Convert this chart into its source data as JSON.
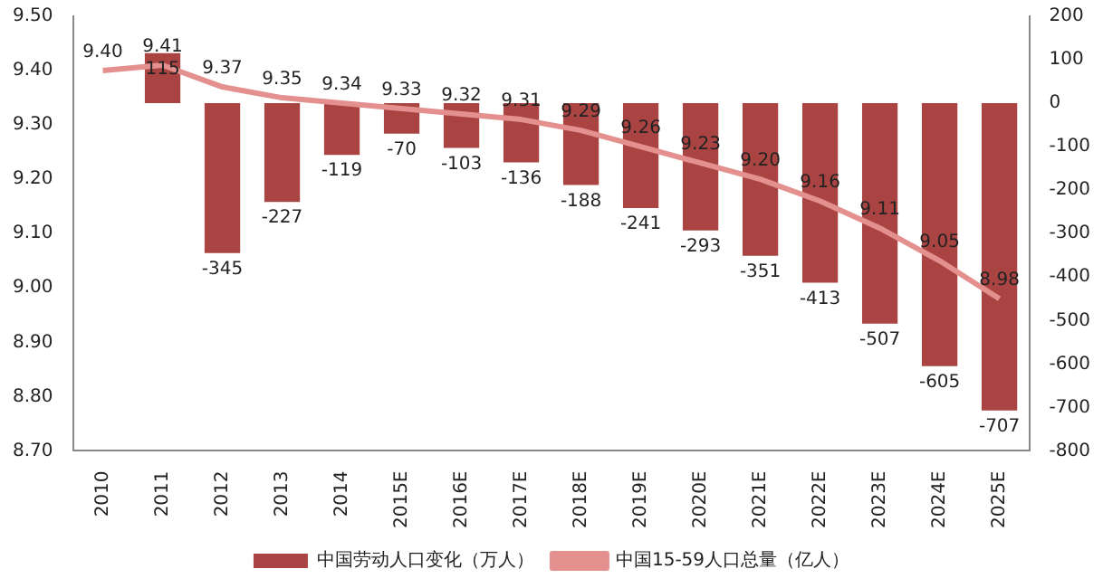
{
  "chart_data": {
    "type": "bar",
    "categories": [
      "2010",
      "2011",
      "2012",
      "2013",
      "2014",
      "2015E",
      "2016E",
      "2017E",
      "2018E",
      "2019E",
      "2020E",
      "2021E",
      "2022E",
      "2023E",
      "2024E",
      "2025E"
    ],
    "series": [
      {
        "name": "中国劳动人口变化（万人）",
        "axis": "y2",
        "color": "#a94443",
        "values": [
          null,
          115,
          -345,
          -227,
          -119,
          -70,
          -103,
          -136,
          -188,
          -241,
          -293,
          -351,
          -413,
          -507,
          -605,
          -707
        ]
      },
      {
        "name": "中国15-59人口总量（亿人）",
        "type": "line",
        "axis": "y",
        "color": "#e3908e",
        "values": [
          9.4,
          9.41,
          9.37,
          9.35,
          9.34,
          9.33,
          9.32,
          9.31,
          9.29,
          9.26,
          9.23,
          9.2,
          9.16,
          9.11,
          9.05,
          8.98
        ],
        "value_labels": [
          "9.40",
          "9.41",
          "9.37",
          "9.35",
          "9.34",
          "9.33",
          "9.32",
          "9.31",
          "9.29",
          "9.26",
          "9.23",
          "9.20",
          "9.16",
          "9.11",
          "9.05",
          "8.98"
        ]
      }
    ],
    "ylim": [
      8.7,
      9.5
    ],
    "yticks": [
      {
        "value": 8.7,
        "label": "8.70"
      },
      {
        "value": 8.8,
        "label": "8.80"
      },
      {
        "value": 8.9,
        "label": "8.90"
      },
      {
        "value": 9.0,
        "label": "9.00"
      },
      {
        "value": 9.1,
        "label": "9.10"
      },
      {
        "value": 9.2,
        "label": "9.20"
      },
      {
        "value": 9.3,
        "label": "9.30"
      },
      {
        "value": 9.4,
        "label": "9.40"
      },
      {
        "value": 9.5,
        "label": "9.50"
      }
    ],
    "y2lim": [
      -800,
      200
    ],
    "y2ticks": [
      -800,
      -700,
      -600,
      -500,
      -400,
      -300,
      -200,
      -100,
      0,
      100,
      200
    ],
    "data_labels": true,
    "grid": false,
    "legend": "bottom",
    "marker": "none",
    "line_style": "solid"
  }
}
